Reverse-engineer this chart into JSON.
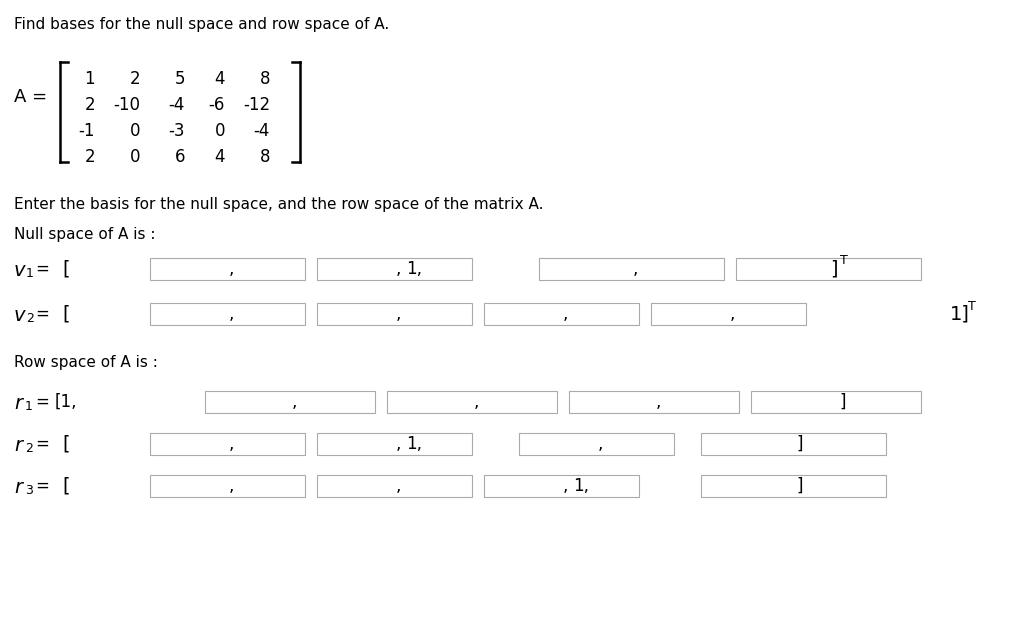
{
  "title": "Find bases for the null space and row space of A.",
  "matrix": [
    [
      "1",
      "2",
      "5",
      "4",
      "8"
    ],
    [
      "2",
      "-10",
      "-4",
      "-6",
      "-12"
    ],
    [
      "-1",
      "0",
      "-3",
      "0",
      "-4"
    ],
    [
      "2",
      "0",
      "6",
      "4",
      "8"
    ]
  ],
  "instruction": "Enter the basis for the null space, and the row space of the matrix A.",
  "null_space_label": "Null space of A is :",
  "row_space_label": "Row space of A is :",
  "bg_color": "#ffffff",
  "text_color": "#000000"
}
